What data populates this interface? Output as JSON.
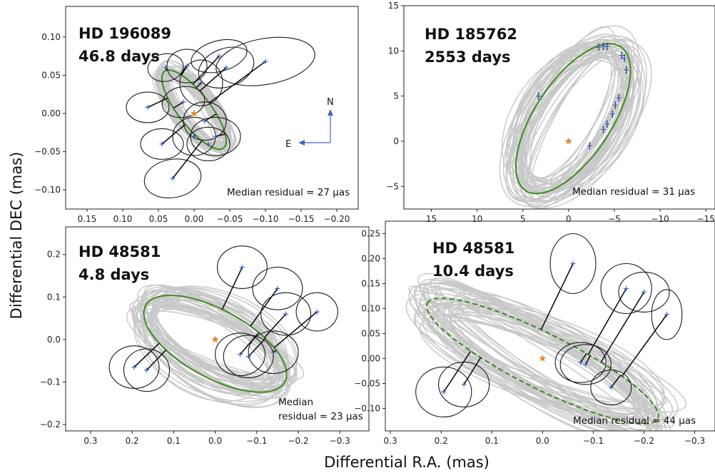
{
  "figure": {
    "xlabel": "Differential R.A. (mas)",
    "ylabel": "Differential DEC (mas)"
  },
  "colors": {
    "orbit_fit": "#3c8a20",
    "orbit_samples": "#c8c8c8",
    "error_ellipse": "#1a1a1a",
    "measurement": "#3a5fc8",
    "star": "#e08a2e",
    "compass": "#4a62c0"
  },
  "compass": {
    "north_label": "N",
    "east_label": "E"
  },
  "chart_data": [
    {
      "type": "scatter",
      "name_line1": "HD 196089",
      "name_line2": "46.8 days",
      "note_lines": [
        "Median residual = 27 μas"
      ],
      "xlim": [
        0.18,
        -0.23
      ],
      "ylim": [
        -0.125,
        0.14
      ],
      "xticks": [
        0.15,
        0.1,
        0.05,
        0.0,
        -0.05,
        -0.1,
        -0.15,
        -0.2
      ],
      "xtick_labels": [
        "0.15",
        "0.10",
        "0.05",
        "0.00",
        "−0.05",
        "−0.10",
        "−0.15",
        "−0.20"
      ],
      "yticks": [
        0.1,
        0.05,
        0.0,
        -0.05,
        -0.1
      ],
      "ytick_labels": [
        "0.10",
        "0.05",
        "0.00",
        "−0.05",
        "−0.10"
      ],
      "orbit": {
        "cx": 0.0,
        "cy": 0.005,
        "a": 0.065,
        "b": 0.022,
        "angle_deg": 50
      },
      "star": [
        0.0,
        0.0
      ],
      "measurements": [
        {
          "x": 0.065,
          "y": 0.008,
          "rx": 0.03,
          "ry": 0.02,
          "ang": 0
        },
        {
          "x": 0.04,
          "y": 0.06,
          "rx": 0.025,
          "ry": 0.018,
          "ang": 10
        },
        {
          "x": 0.01,
          "y": 0.062,
          "rx": 0.028,
          "ry": 0.022,
          "ang": 0
        },
        {
          "x": 0.015,
          "y": 0.015,
          "rx": 0.03,
          "ry": 0.02,
          "ang": 10
        },
        {
          "x": -0.01,
          "y": 0.04,
          "rx": 0.03,
          "ry": 0.03,
          "ang": 0
        },
        {
          "x": -0.035,
          "y": 0.075,
          "rx": 0.04,
          "ry": 0.02,
          "ang": 15
        },
        {
          "x": -0.045,
          "y": 0.06,
          "rx": 0.04,
          "ry": 0.025,
          "ang": 20
        },
        {
          "x": -0.1,
          "y": 0.068,
          "rx": 0.07,
          "ry": 0.03,
          "ang": 10
        },
        {
          "x": -0.015,
          "y": -0.01,
          "rx": 0.03,
          "ry": 0.025,
          "ang": 0
        },
        {
          "x": -0.03,
          "y": -0.03,
          "rx": 0.035,
          "ry": 0.025,
          "ang": 0
        },
        {
          "x": -0.02,
          "y": -0.04,
          "rx": 0.03,
          "ry": 0.022,
          "ang": 0
        },
        {
          "x": 0.045,
          "y": -0.04,
          "rx": 0.03,
          "ry": 0.02,
          "ang": 0
        },
        {
          "x": 0.03,
          "y": -0.085,
          "rx": 0.04,
          "ry": 0.025,
          "ang": 10
        },
        {
          "x": 0.0,
          "y": -0.03,
          "rx": 0.03,
          "ry": 0.025,
          "ang": 0
        }
      ]
    },
    {
      "type": "scatter",
      "name_line1": "HD 185762",
      "name_line2": "2553 days",
      "note_lines": [
        "Median residual = 31 μas"
      ],
      "xlim": [
        18,
        -16
      ],
      "ylim": [
        -7.5,
        15
      ],
      "xticks": [
        15,
        10,
        5,
        0,
        -5,
        -10,
        -15
      ],
      "xtick_labels": [
        "15",
        "10",
        "5",
        "0",
        "−5",
        "−10",
        "−15"
      ],
      "yticks": [
        15,
        10,
        5,
        0,
        -5
      ],
      "ytick_labels": [
        "15",
        "10",
        "5",
        "0",
        "−5"
      ],
      "orbit": {
        "cx": -0.5,
        "cy": 2.5,
        "a": 9.5,
        "b": 4.2,
        "angle_deg": -57
      },
      "star": [
        0.0,
        0.0
      ],
      "measurements": [
        {
          "x": 3.3,
          "y": 5.0,
          "rx": 0,
          "ry": 0,
          "ang": 0
        },
        {
          "x": -3.3,
          "y": 10.4,
          "rx": 0,
          "ry": 0,
          "ang": 0
        },
        {
          "x": -3.8,
          "y": 10.5,
          "rx": 0,
          "ry": 0,
          "ang": 0
        },
        {
          "x": -4.2,
          "y": 10.5,
          "rx": 0,
          "ry": 0,
          "ang": 0
        },
        {
          "x": -5.8,
          "y": 9.5,
          "rx": 0,
          "ry": 0,
          "ang": 0
        },
        {
          "x": -6.1,
          "y": 9.2,
          "rx": 0,
          "ry": 0,
          "ang": 0
        },
        {
          "x": -6.3,
          "y": 7.9,
          "rx": 0,
          "ry": 0,
          "ang": 0
        },
        {
          "x": -5.5,
          "y": 4.8,
          "rx": 0,
          "ry": 0,
          "ang": 0
        },
        {
          "x": -5.1,
          "y": 4.0,
          "rx": 0,
          "ry": 0,
          "ang": 0
        },
        {
          "x": -4.8,
          "y": 3.0,
          "rx": 0,
          "ry": 0,
          "ang": 0
        },
        {
          "x": -4.2,
          "y": 1.9,
          "rx": 0,
          "ry": 0,
          "ang": 0
        },
        {
          "x": -3.8,
          "y": 1.3,
          "rx": 0,
          "ry": 0,
          "ang": 0
        },
        {
          "x": -2.3,
          "y": -0.5,
          "rx": 0,
          "ry": 0,
          "ang": 0
        }
      ]
    },
    {
      "type": "scatter",
      "name_line1": "HD 48581",
      "name_line2": "4.8 days",
      "note_lines": [
        "Median",
        "residual = 23 μas"
      ],
      "xlim": [
        0.36,
        -0.37
      ],
      "ylim": [
        -0.215,
        0.265
      ],
      "xticks": [
        0.3,
        0.2,
        0.1,
        0.0,
        -0.1,
        -0.2,
        -0.3
      ],
      "xtick_labels": [
        "0.3",
        "0.2",
        "0.1",
        "0.0",
        "−0.1",
        "−0.2",
        "−0.3"
      ],
      "yticks": [
        0.2,
        0.1,
        0.0,
        -0.1,
        -0.2
      ],
      "ytick_labels": [
        "0.2",
        "0.1",
        "0.0",
        "−0.1",
        "−0.2"
      ],
      "orbit": {
        "cx": 0.0,
        "cy": -0.01,
        "a": 0.19,
        "b": 0.08,
        "angle_deg": 28
      },
      "star": [
        0.0,
        0.0
      ],
      "measurements": [
        {
          "x": 0.195,
          "y": -0.065,
          "rx": 0.06,
          "ry": 0.05,
          "ang": 0
        },
        {
          "x": 0.165,
          "y": -0.072,
          "rx": 0.055,
          "ry": 0.05,
          "ang": 0
        },
        {
          "x": -0.065,
          "y": 0.17,
          "rx": 0.06,
          "ry": 0.05,
          "ang": 0
        },
        {
          "x": -0.15,
          "y": 0.12,
          "rx": 0.06,
          "ry": 0.05,
          "ang": 0
        },
        {
          "x": -0.17,
          "y": 0.06,
          "rx": 0.06,
          "ry": 0.05,
          "ang": 0
        },
        {
          "x": -0.245,
          "y": 0.065,
          "rx": 0.05,
          "ry": 0.045,
          "ang": 0
        },
        {
          "x": -0.06,
          "y": -0.035,
          "rx": 0.06,
          "ry": 0.05,
          "ang": 0
        },
        {
          "x": -0.08,
          "y": -0.04,
          "rx": 0.06,
          "ry": 0.05,
          "ang": 0
        },
        {
          "x": -0.14,
          "y": -0.03,
          "rx": 0.06,
          "ry": 0.05,
          "ang": 0
        }
      ]
    },
    {
      "type": "scatter",
      "name_line1": "HD 48581",
      "name_line2": "10.4 days",
      "note_lines": [
        "Median residual = 44 μas"
      ],
      "xlim": [
        0.31,
        -0.34
      ],
      "ylim": [
        -0.145,
        0.275
      ],
      "xticks": [
        0.3,
        0.2,
        0.1,
        0.0,
        -0.1,
        -0.2,
        -0.3
      ],
      "xtick_labels": [
        "0.3",
        "0.2",
        "0.1",
        "0.0",
        "−0.1",
        "−0.2",
        "−0.3"
      ],
      "yticks": [
        0.25,
        0.2,
        0.15,
        0.1,
        0.05,
        0.0,
        -0.05,
        -0.1
      ],
      "ytick_labels": [
        "0.25",
        "0.20",
        "0.15",
        "0.10",
        "0.05",
        "0.00",
        "−0.05",
        "−0.10"
      ],
      "orbit": {
        "cx": 0.0,
        "cy": -0.005,
        "a": 0.255,
        "b": 0.055,
        "angle_deg": 27
      },
      "star": [
        0.0,
        0.0
      ],
      "measurements": [
        {
          "x": 0.195,
          "y": -0.067,
          "rx": 0.055,
          "ry": 0.05,
          "ang": 0
        },
        {
          "x": 0.155,
          "y": -0.052,
          "rx": 0.05,
          "ry": 0.045,
          "ang": 0
        },
        {
          "x": -0.06,
          "y": 0.19,
          "rx": 0.045,
          "ry": 0.06,
          "ang": 0
        },
        {
          "x": -0.165,
          "y": 0.14,
          "rx": 0.05,
          "ry": 0.05,
          "ang": 0
        },
        {
          "x": -0.2,
          "y": 0.133,
          "rx": 0.05,
          "ry": 0.04,
          "ang": 0
        },
        {
          "x": -0.245,
          "y": 0.088,
          "rx": 0.03,
          "ry": 0.05,
          "ang": 0
        },
        {
          "x": -0.075,
          "y": -0.008,
          "rx": 0.05,
          "ry": 0.04,
          "ang": 0
        },
        {
          "x": -0.085,
          "y": -0.012,
          "rx": 0.05,
          "ry": 0.04,
          "ang": 0
        },
        {
          "x": -0.135,
          "y": -0.058,
          "rx": 0.04,
          "ry": 0.035,
          "ang": 0
        }
      ]
    }
  ]
}
